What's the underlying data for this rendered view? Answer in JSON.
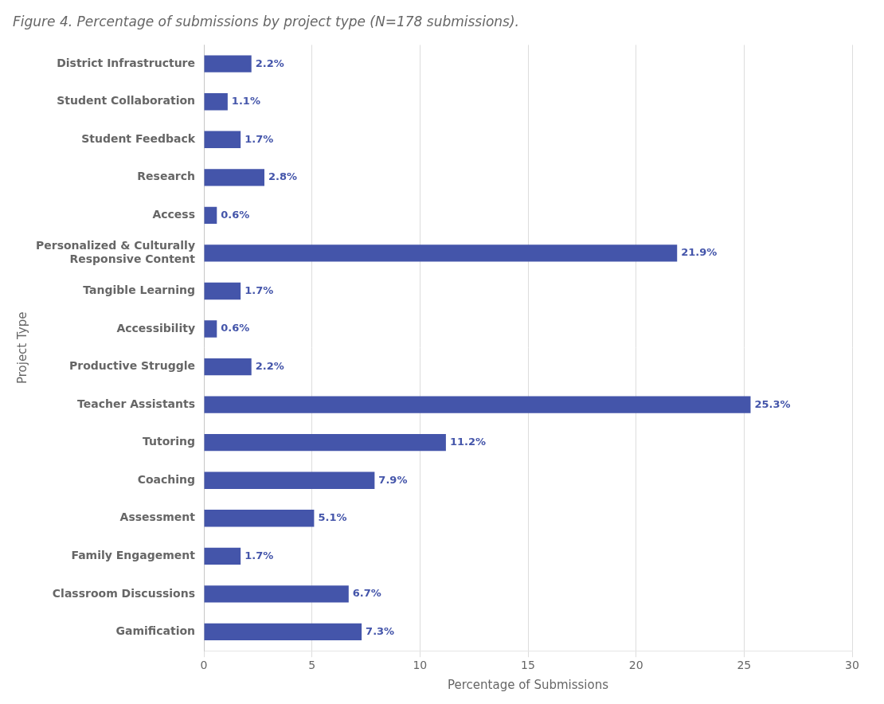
{
  "chart_data": {
    "type": "bar",
    "orientation": "horizontal",
    "title": "Figure 4. Percentage of submissions by project type (N=178 submissions).",
    "categories": [
      "Gamification",
      "Classroom Discussions",
      "Family Engagement",
      "Assessment",
      "Coaching",
      "Tutoring",
      "Teacher Assistants",
      "Productive Struggle",
      "Accessibility",
      "Tangible Learning",
      "Personalized & Culturally\nResponsive Content",
      "Access",
      "Research",
      "Student Feedback",
      "Student Collaboration",
      "District Infrastructure"
    ],
    "values": [
      7.3,
      6.7,
      1.7,
      5.1,
      7.9,
      11.2,
      25.3,
      2.2,
      0.6,
      1.7,
      21.9,
      0.6,
      2.8,
      1.7,
      1.1,
      2.2
    ],
    "value_labels": [
      "7.3%",
      "6.7%",
      "1.7%",
      "5.1%",
      "7.9%",
      "11.2%",
      "25.3%",
      "2.2%",
      "0.6%",
      "1.7%",
      "21.9%",
      "0.6%",
      "2.8%",
      "1.7%",
      "1.1%",
      "2.2%"
    ],
    "color": "#4455aa",
    "xlabel": "Percentage of Submissions",
    "ylabel": "Project Type",
    "xlim": [
      0,
      30
    ],
    "xticks": [
      0,
      5,
      10,
      15,
      20,
      25,
      30
    ],
    "grid": true,
    "data_labels": true
  }
}
